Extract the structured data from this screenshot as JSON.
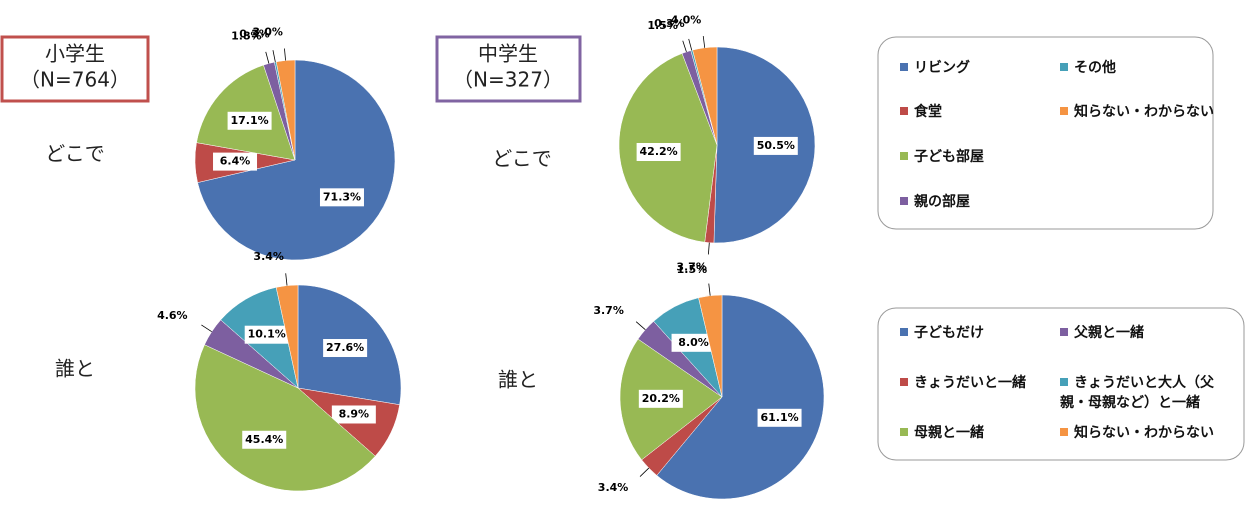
{
  "headers": [
    {
      "group": "小学生",
      "n": "（N=764）"
    },
    {
      "group": "中学生",
      "n": "（N=327）"
    }
  ],
  "rows": [
    "どこで",
    "誰と"
  ],
  "chart_data": [
    {
      "type": "pie",
      "categories": [
        "リビング",
        "食堂",
        "子ども部屋",
        "親の部屋",
        "その他",
        "知らない・わからない"
      ],
      "values": [
        71.3,
        6.4,
        17.1,
        1.8,
        0.3,
        3.0
      ],
      "value_labels": [
        "71.3%",
        "6.4%",
        "17.1%",
        "1.8%",
        "0.3%",
        "3.0%"
      ],
      "colors": [
        "#4a72b0",
        "#be4b48",
        "#98b954",
        "#7d5fa0",
        "#46a0b8",
        "#f59443"
      ]
    },
    {
      "type": "pie",
      "categories": [
        "リビング",
        "食堂",
        "子ども部屋",
        "親の部屋",
        "その他",
        "知らない・わからない"
      ],
      "values": [
        50.5,
        1.5,
        42.2,
        1.5,
        0.3,
        4.0
      ],
      "value_labels": [
        "50.5%",
        "1.5%",
        "42.2%",
        "1.5%",
        "0.3%",
        "4.0%"
      ],
      "colors": [
        "#4a72b0",
        "#be4b48",
        "#98b954",
        "#7d5fa0",
        "#46a0b8",
        "#f59443"
      ]
    },
    {
      "type": "pie",
      "categories": [
        "子どもだけ",
        "きょうだいと一緒",
        "母親と一緒",
        "父親と一緒",
        "きょうだいと大人（父親・母親など）と一緒",
        "知らない・わからない"
      ],
      "values": [
        27.6,
        8.9,
        45.4,
        4.6,
        10.1,
        3.4
      ],
      "value_labels": [
        "27.6%",
        "8.9%",
        "45.4%",
        "4.6%",
        "10.1%",
        "3.4%"
      ],
      "colors": [
        "#4a72b0",
        "#be4b48",
        "#98b954",
        "#7d5fa0",
        "#46a0b8",
        "#f59443"
      ]
    },
    {
      "type": "pie",
      "categories": [
        "子どもだけ",
        "きょうだいと一緒",
        "母親と一緒",
        "父親と一緒",
        "きょうだいと大人（父親・母親など）と一緒",
        "知らない・わからない"
      ],
      "values": [
        61.1,
        3.4,
        20.2,
        3.7,
        8.0,
        3.7
      ],
      "value_labels": [
        "61.1%",
        "3.4%",
        "20.2%",
        "3.7%",
        "8.0%",
        "3.7%"
      ],
      "colors": [
        "#4a72b0",
        "#be4b48",
        "#98b954",
        "#7d5fa0",
        "#46a0b8",
        "#f59443"
      ]
    }
  ]
}
